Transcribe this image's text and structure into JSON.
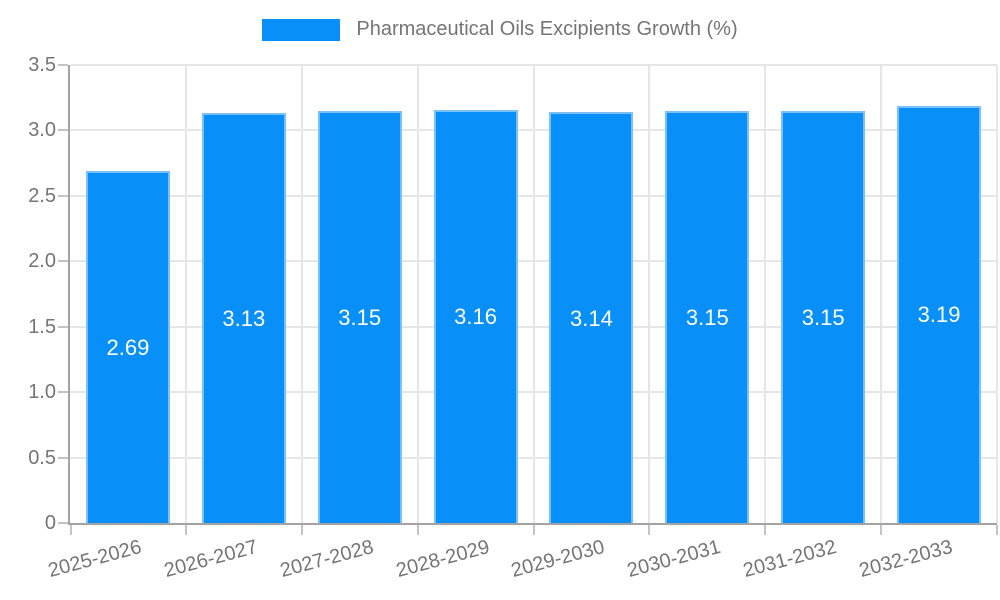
{
  "legend": {
    "label": "Pharmaceutical Oils Excipients Growth (%)"
  },
  "chart_data": {
    "type": "bar",
    "title": "Pharmaceutical Oils Excipients Growth (%)",
    "categories": [
      "2025-2026",
      "2026-2027",
      "2027-2028",
      "2028-2029",
      "2029-2030",
      "2030-2031",
      "2031-2032",
      "2032-2033"
    ],
    "series": [
      {
        "name": "Pharmaceutical Oils Excipients Growth (%)",
        "values": [
          2.69,
          3.13,
          3.15,
          3.16,
          3.14,
          3.15,
          3.15,
          3.19
        ]
      }
    ],
    "value_labels": [
      "2.69",
      "3.13",
      "3.15",
      "3.16",
      "3.14",
      "3.15",
      "3.15",
      "3.19"
    ],
    "xlabel": "",
    "ylabel": "",
    "ylim": [
      0,
      3.5
    ],
    "ytick_step": 0.5,
    "ytick_labels": [
      "0",
      "0.5",
      "1.0",
      "1.5",
      "2.0",
      "2.5",
      "3.0",
      "3.5"
    ],
    "grid": true,
    "legend_position": "top-center",
    "x_label_rotation_deg": -15,
    "colors": {
      "bar": "#0890f8",
      "bar_stroke": "#7cc0fa",
      "bar_label": "#ffffff",
      "axis_line": "#a3a3a3",
      "gridline": "#e6e6e6",
      "tick": "#c4c4c4",
      "tick_label": "#757575",
      "background": "#ffffff"
    }
  }
}
